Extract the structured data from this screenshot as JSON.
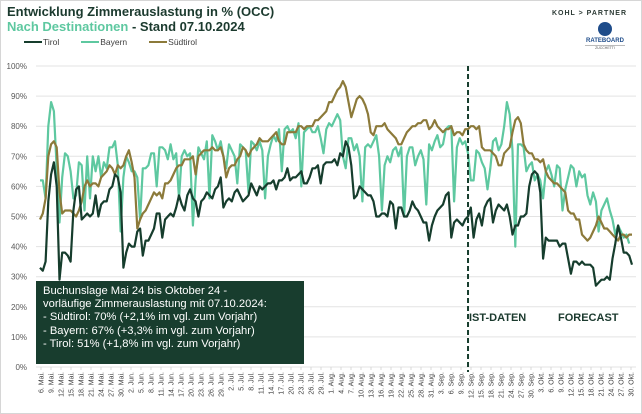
{
  "header": {
    "title_line1": "Entwicklung Zimmerauslastung in % (OCC)",
    "title_line2_accent": "Nach Destinationen",
    "title_line2_rest": " - Stand 07.10.2024"
  },
  "branding": {
    "kohl_partner": "KOHL > PARTNER",
    "rateboard": "RATEBOARD",
    "rateboard_sub": "ZUCCHETTI"
  },
  "infobox": {
    "lines": [
      "Buchunslage Mai 24 bis Oktober 24 -",
      "vorläufige Zimmerauslastung mit 07.10.2024:",
      "- Südtirol:  70% (+2,1% im vgl. zum Vorjahr)",
      "- Bayern:  67% (+3,3% im vgl. zum Vorjahr)",
      "- Tirol:  51% (+1,8% im vgl. zum Vorjahr)"
    ]
  },
  "annotations": {
    "ist_daten": "IST-DATEN",
    "forecast": "FORECAST"
  },
  "chart_data": {
    "type": "line",
    "title": "Entwicklung Zimmerauslastung in % (OCC)",
    "subtitle": "Nach Destinationen - Stand 07.10.2024",
    "xlabel": "",
    "ylabel": "",
    "ylim": [
      0,
      100
    ],
    "yticks": [
      "0%",
      "10%",
      "20%",
      "30%",
      "40%",
      "50%",
      "60%",
      "70%",
      "80%",
      "90%",
      "100%"
    ],
    "grid": true,
    "legend_position": "top-left",
    "x_start": "6. Mai",
    "x_end": "31. Okt.",
    "forecast_start_index": 154,
    "x_tick_labels": [
      "6. Mai.",
      "9. Mai.",
      "12. Mai.",
      "15. Mai.",
      "18. Mai.",
      "21. Mai.",
      "24. Mai.",
      "27. Mai.",
      "30. Mai.",
      "2. Jun.",
      "5. Jun.",
      "8. Jun.",
      "11. Jun.",
      "14. Jun.",
      "17. Jun.",
      "20. Jun.",
      "23. Jun.",
      "26. Jun.",
      "29. Jun.",
      "2. Jul.",
      "5. Jul.",
      "8. Jul.",
      "11. Jul.",
      "14. Jul.",
      "17. Jul.",
      "20. Jul.",
      "23. Jul.",
      "26. Jul.",
      "29. Jul.",
      "1. Aug.",
      "4. Aug.",
      "7. Aug.",
      "10. Aug.",
      "13. Aug.",
      "16. Aug.",
      "19. Aug.",
      "22. Aug.",
      "25. Aug.",
      "28. Aug.",
      "31. Aug.",
      "3. Sep.",
      "6. Sep.",
      "9. Sep.",
      "12. Sep.",
      "15. Sep.",
      "18. Sep.",
      "21. Sep.",
      "24. Sep.",
      "27. Sep.",
      "30. Sep.",
      "3. Okt.",
      "6. Okt.",
      "9. Okt.",
      "12. Okt.",
      "15. Okt.",
      "18. Okt.",
      "21. Okt.",
      "24. Okt.",
      "27. Okt.",
      "30. Okt."
    ],
    "series": [
      {
        "name": "Tirol",
        "color": "#163d2d",
        "values": [
          33,
          32,
          35,
          55,
          64,
          68,
          60,
          29,
          38,
          38,
          37,
          35,
          52,
          59,
          60,
          49,
          50,
          51,
          50,
          51,
          57,
          50,
          54,
          55,
          55,
          59,
          60,
          64,
          63,
          58,
          33,
          38,
          41,
          40,
          40,
          45,
          46,
          37,
          42,
          42,
          44,
          46,
          51,
          51,
          43,
          49,
          50,
          51,
          50,
          53,
          57,
          54,
          52,
          57,
          59,
          56,
          55,
          50,
          55,
          56,
          58,
          57,
          56,
          59,
          60,
          63,
          53,
          55,
          56,
          55,
          58,
          59,
          57,
          55,
          56,
          57,
          61,
          59,
          57,
          60,
          59,
          60,
          61,
          61,
          62,
          59,
          62,
          62,
          63,
          66,
          62,
          63,
          63,
          64,
          65,
          61,
          61,
          63,
          66,
          66,
          67,
          61,
          67,
          68,
          68,
          68,
          69,
          67,
          71,
          70,
          75,
          73,
          67,
          56,
          57,
          60,
          59,
          58,
          57,
          57,
          55,
          50,
          50,
          51,
          51,
          50,
          55,
          54,
          46,
          53,
          53,
          50,
          50,
          52,
          55,
          53,
          52,
          50,
          48,
          48,
          42,
          47,
          50,
          52,
          53,
          54,
          57,
          58,
          43,
          48,
          49,
          48,
          47,
          49,
          50,
          53,
          43,
          49,
          51,
          47,
          53,
          55,
          56,
          48,
          52,
          54,
          53,
          52,
          54,
          50,
          44,
          47,
          47,
          50,
          50,
          51,
          60,
          64,
          65,
          64,
          58,
          36,
          43,
          42,
          42,
          42,
          42,
          40,
          41,
          41,
          36,
          31,
          35,
          35,
          34,
          35,
          34,
          34,
          34,
          33,
          27,
          28,
          29,
          29,
          30,
          29,
          36,
          41,
          47,
          43,
          38,
          38,
          37,
          34
        ]
      },
      {
        "name": "Bayern",
        "color": "#5ec8a0",
        "values": [
          62,
          62,
          56,
          80,
          88,
          85,
          66,
          48,
          63,
          71,
          70,
          65,
          56,
          57,
          68,
          67,
          52,
          70,
          56,
          70,
          65,
          70,
          63,
          68,
          66,
          73,
          73,
          75,
          67,
          45,
          63,
          70,
          68,
          65,
          65,
          63,
          49,
          66,
          66,
          67,
          71,
          71,
          60,
          73,
          73,
          72,
          69,
          74,
          69,
          71,
          56,
          70,
          72,
          70,
          71,
          47,
          62,
          73,
          71,
          69,
          75,
          56,
          77,
          75,
          72,
          75,
          70,
          66,
          74,
          72,
          70,
          61,
          74,
          73,
          72,
          58,
          75,
          74,
          72,
          75,
          72,
          56,
          70,
          74,
          77,
          75,
          79,
          65,
          79,
          80,
          78,
          79,
          76,
          81,
          60,
          78,
          79,
          80,
          78,
          78,
          80,
          76,
          71,
          79,
          81,
          80,
          82,
          84,
          82,
          70,
          66,
          76,
          76,
          72,
          74,
          70,
          55,
          73,
          74,
          73,
          75,
          77,
          70,
          52,
          67,
          70,
          68,
          72,
          73,
          70,
          73,
          50,
          70,
          73,
          73,
          67,
          70,
          72,
          69,
          54,
          74,
          72,
          75,
          77,
          73,
          74,
          79,
          80,
          80,
          55,
          73,
          76,
          74,
          75,
          71,
          62,
          62,
          72,
          71,
          68,
          66,
          59,
          66,
          75,
          76,
          72,
          74,
          80,
          88,
          84,
          72,
          40,
          74,
          74,
          73,
          65,
          67,
          68,
          62,
          64,
          62,
          56,
          65,
          67,
          64,
          60,
          67,
          66,
          52,
          59,
          63,
          67,
          66,
          60,
          65,
          63,
          64,
          57,
          54,
          58,
          55,
          45,
          52,
          54,
          56,
          52,
          49,
          44,
          47,
          45,
          43,
          44,
          41
        ]
      },
      {
        "name": "Südtirol",
        "color": "#8c7a3a",
        "values": [
          49,
          51,
          56,
          70,
          74,
          75,
          73,
          58,
          51,
          52,
          52,
          52,
          51,
          50,
          52,
          55,
          60,
          62,
          60,
          61,
          61,
          60,
          63,
          64,
          65,
          67,
          66,
          64,
          67,
          66,
          67,
          70,
          72,
          68,
          63,
          46,
          49,
          51,
          52,
          54,
          56,
          58,
          57,
          58,
          56,
          61,
          61,
          62,
          64,
          66,
          67,
          67,
          69,
          69,
          69,
          70,
          64,
          70,
          71,
          72,
          72,
          72,
          73,
          72,
          72,
          73,
          70,
          63,
          66,
          67,
          67,
          69,
          70,
          73,
          72,
          70,
          72,
          73,
          74,
          76,
          75,
          75,
          75,
          76,
          77,
          78,
          75,
          74,
          74,
          78,
          78,
          78,
          78,
          80,
          80,
          79,
          80,
          80,
          80,
          82,
          82,
          83,
          84,
          85,
          88,
          88,
          90,
          92,
          93,
          95,
          93,
          88,
          83,
          86,
          89,
          90,
          89,
          87,
          84,
          78,
          77,
          80,
          80,
          80,
          81,
          79,
          78,
          77,
          76,
          74,
          74,
          76,
          78,
          79,
          80,
          80,
          81,
          81,
          82,
          82,
          79,
          80,
          82,
          80,
          79,
          78,
          79,
          79,
          80,
          77,
          78,
          78,
          77,
          79,
          79,
          80,
          80,
          79,
          80,
          73,
          72,
          72,
          72,
          71,
          70,
          67,
          67,
          71,
          72,
          73,
          78,
          82,
          83,
          81,
          74,
          72,
          71,
          71,
          69,
          69,
          68,
          69,
          65,
          63,
          62,
          61,
          61,
          60,
          59,
          58,
          52,
          51,
          51,
          49,
          49,
          44,
          43,
          42,
          43,
          45,
          47,
          50,
          48,
          46,
          46,
          45,
          44,
          43,
          42,
          44,
          44,
          43,
          44,
          44
        ]
      }
    ]
  }
}
